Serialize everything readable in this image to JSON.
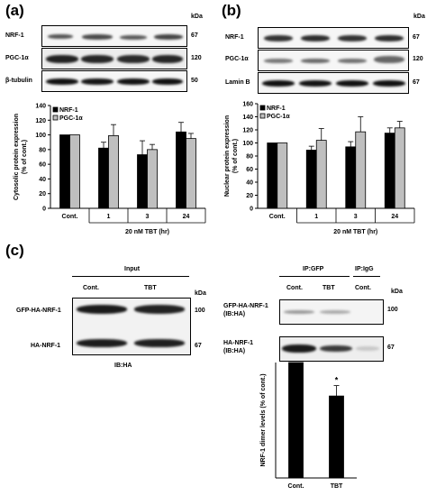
{
  "panel_a": {
    "label": "(a)",
    "kda_unit": "kDa",
    "rows": [
      {
        "name": "NRF-1",
        "kda": "67"
      },
      {
        "name": "PGC-1α",
        "kda": "120"
      },
      {
        "name": "β-tubulin",
        "kda": "50"
      }
    ],
    "x_group_label": "20 nM TBT (hr)"
  },
  "panel_b": {
    "label": "(b)",
    "kda_unit": "kDa",
    "rows": [
      {
        "name": "NRF-1",
        "kda": "67"
      },
      {
        "name": "PGC-1α",
        "kda": "120"
      },
      {
        "name": "Lamin B",
        "kda": "67"
      }
    ],
    "x_group_label": "20 nM TBT (hr)"
  },
  "panel_c": {
    "label": "(c)",
    "kda_unit": "kDa",
    "input": {
      "header": "Input",
      "lanes": [
        "Cont.",
        "TBT"
      ],
      "rows": [
        {
          "name": "GFP-HA-NRF-1",
          "kda": "100"
        },
        {
          "name": "HA-NRF-1",
          "kda": "67"
        }
      ],
      "ib": "IB:HA"
    },
    "ip": {
      "header_gfp": "IP:GFP",
      "header_igg": "IP:IgG",
      "lanes": [
        "Cont.",
        "TBT",
        "Cont."
      ],
      "rows": [
        {
          "name_line1": "GFP-HA-NRF-1",
          "name_line2": "(IB:HA)",
          "kda": "100"
        },
        {
          "name_line1": "HA-NRF-1",
          "name_line2": "(IB:HA)",
          "kda": "67"
        }
      ]
    }
  },
  "chart_data": [
    {
      "type": "bar",
      "id": "a",
      "categories": [
        "Cont.",
        "1",
        "3",
        "24"
      ],
      "series": [
        {
          "name": "NRF-1",
          "values": [
            100,
            82,
            73,
            104
          ],
          "errors": [
            0,
            8,
            19,
            13
          ],
          "color": "#000000"
        },
        {
          "name": "PGC-1α",
          "values": [
            100,
            99,
            80,
            95
          ],
          "errors": [
            0,
            15,
            7,
            7
          ],
          "color": "#bfbfbf"
        }
      ],
      "ylabel": "Cytosolic protein expression\n(% of cont.)",
      "xlabel": "20 nM TBT (hr)",
      "ylim": [
        0,
        140
      ],
      "yticks": [
        0,
        20,
        40,
        60,
        80,
        100,
        120,
        140
      ],
      "legend": "top-left"
    },
    {
      "type": "bar",
      "id": "b",
      "categories": [
        "Cont.",
        "1",
        "3",
        "24"
      ],
      "series": [
        {
          "name": "NRF-1",
          "values": [
            100,
            89,
            94,
            115
          ],
          "errors": [
            0,
            6,
            8,
            8
          ],
          "color": "#000000"
        },
        {
          "name": "PGC-1α",
          "values": [
            100,
            104,
            117,
            123
          ],
          "errors": [
            0,
            18,
            23,
            10
          ],
          "color": "#bfbfbf"
        }
      ],
      "ylabel": "Nuclear protein expression\n(% of cont.)",
      "xlabel": "20 nM TBT (hr)",
      "ylim": [
        0,
        160
      ],
      "yticks": [
        0,
        20,
        40,
        60,
        80,
        100,
        120,
        140,
        160
      ],
      "legend": "top-left"
    },
    {
      "type": "bar",
      "id": "c",
      "categories": [
        "Cont.",
        "TBT"
      ],
      "series": [
        {
          "name": "",
          "values": [
            100,
            71
          ],
          "errors": [
            0,
            9
          ],
          "color": "#000000"
        }
      ],
      "annotations": [
        "",
        "*"
      ],
      "ylabel": "NRF-1 dimer levels (% of cont.)",
      "ylim": [
        0,
        100
      ],
      "yticks": [],
      "legend": "none"
    }
  ]
}
